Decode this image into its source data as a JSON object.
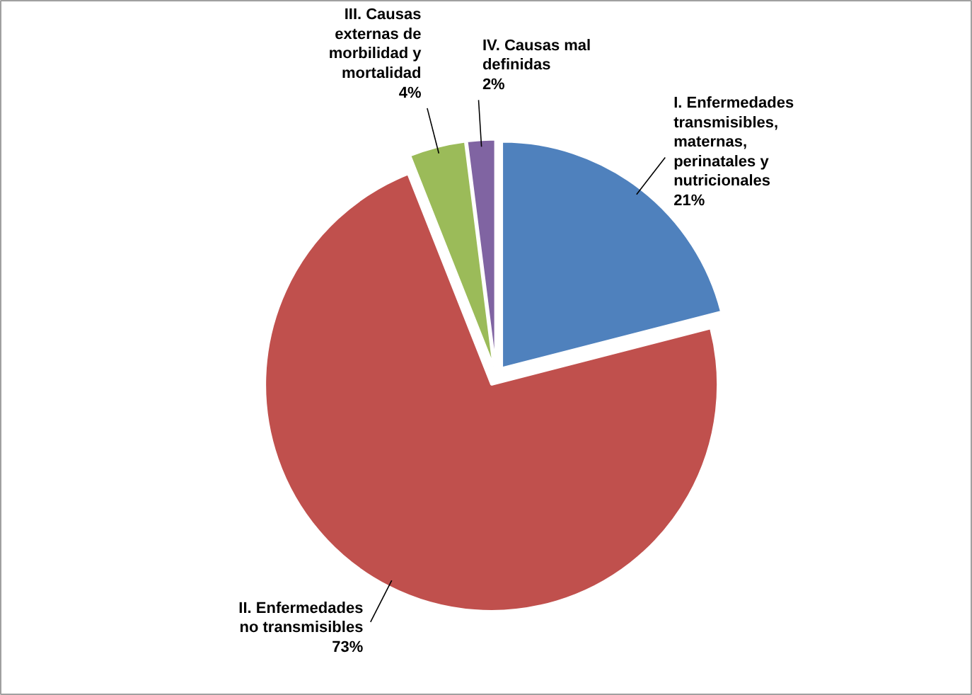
{
  "chart_data": {
    "type": "pie",
    "categories": [
      "I. Enfermedades transmisibles, maternas, perinatales y nutricionales",
      "II. Enfermedades no transmisibles",
      "III. Causas externas de morbilidad y mortalidad",
      "IV. Causas mal definidas"
    ],
    "values": [
      21,
      73,
      4,
      2
    ],
    "colors": [
      "#4f81bd",
      "#c0504d",
      "#9bbb59",
      "#8064a2"
    ],
    "value_labels": [
      "21%",
      "73%",
      "4%",
      "2%"
    ]
  }
}
